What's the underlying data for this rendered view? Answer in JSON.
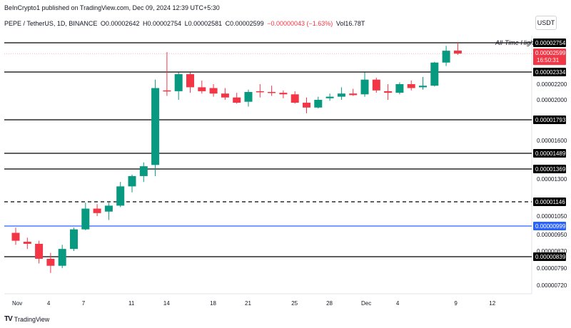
{
  "header": {
    "published": "BeInCrypto1 published on TradingView.com, Dec 09, 2024 12:39 UTC+5:30",
    "symbol": "PEPE / TetherUS, 1D, BINANCE",
    "open": "O0.00002642",
    "high": "H0.00002754",
    "low": "L0.00002581",
    "close": "C0.00002599",
    "change": "−0.00000043 (−1.63%)",
    "volume": "Vol16.78T",
    "currency_button": "USDT"
  },
  "footer": {
    "brand": "TradingView"
  },
  "colors": {
    "up": "#089981",
    "down": "#f23645",
    "level": "#000000",
    "blue_level": "#2962ff",
    "label_bg": "#000000"
  },
  "chart_data": {
    "type": "candlestick",
    "x_ticks": [
      "Nov",
      "4",
      "7",
      "11",
      "14",
      "18",
      "21",
      "25",
      "28",
      "Dec",
      "4",
      "9",
      "12"
    ],
    "y_ticks": [
      "0.00002200",
      "0.00002000",
      "0.00001600",
      "0.00001300",
      "0.00001050",
      "0.00000950",
      "0.00000870",
      "0.00000790",
      "0.00000720"
    ],
    "candles": [
      {
        "o": 9.6e-06,
        "h": 9.9e-06,
        "l": 9e-06,
        "c": 9.2e-06
      },
      {
        "o": 9.15e-06,
        "h": 9.35e-06,
        "l": 8.8e-06,
        "c": 9.05e-06
      },
      {
        "o": 9.05e-06,
        "h": 9.2e-06,
        "l": 8.1e-06,
        "c": 8.3e-06
      },
      {
        "o": 8.3e-06,
        "h": 8.6e-06,
        "l": 7.7e-06,
        "c": 8e-06
      },
      {
        "o": 8e-06,
        "h": 9e-06,
        "l": 7.9e-06,
        "c": 8.8e-06
      },
      {
        "o": 8.8e-06,
        "h": 9.9e-06,
        "l": 8.7e-06,
        "c": 9.8e-06
      },
      {
        "o": 9.8e-06,
        "h": 1.14e-05,
        "l": 9.75e-06,
        "c": 1.1e-05
      },
      {
        "o": 1.1e-05,
        "h": 1.13e-05,
        "l": 1.05e-05,
        "c": 1.07e-05
      },
      {
        "o": 1.08e-05,
        "h": 1.14e-05,
        "l": 1.03e-05,
        "c": 1.12e-05
      },
      {
        "o": 1.12e-05,
        "h": 1.28e-05,
        "l": 1.11e-05,
        "c": 1.25e-05
      },
      {
        "o": 1.25e-05,
        "h": 1.33e-05,
        "l": 1.21e-05,
        "c": 1.32e-05
      },
      {
        "o": 1.32e-05,
        "h": 1.42e-05,
        "l": 1.28e-05,
        "c": 1.39e-05
      },
      {
        "o": 1.4e-05,
        "h": 2.25e-05,
        "l": 1.32e-05,
        "c": 2.15e-05
      },
      {
        "o": 2.12e-05,
        "h": 2.62e-05,
        "l": 2.05e-05,
        "c": 2.11e-05
      },
      {
        "o": 2.11e-05,
        "h": 2.33e-05,
        "l": 2e-05,
        "c": 2.31e-05
      },
      {
        "o": 2.31e-05,
        "h": 2.33e-05,
        "l": 2.09e-05,
        "c": 2.16e-05
      },
      {
        "o": 2.16e-05,
        "h": 2.24e-05,
        "l": 2.08e-05,
        "c": 2.11e-05
      },
      {
        "o": 2.15e-05,
        "h": 2.2e-05,
        "l": 2.04e-05,
        "c": 2.08e-05
      },
      {
        "o": 2.08e-05,
        "h": 2.15e-05,
        "l": 2e-05,
        "c": 2.03e-05
      },
      {
        "o": 2.03e-05,
        "h": 2.09e-05,
        "l": 1.96e-05,
        "c": 1.97e-05
      },
      {
        "o": 1.98e-05,
        "h": 2.13e-05,
        "l": 1.93e-05,
        "c": 2.1e-05
      },
      {
        "o": 2.11e-05,
        "h": 2.2e-05,
        "l": 2.03e-05,
        "c": 2.1e-05
      },
      {
        "o": 2.1e-05,
        "h": 2.18e-05,
        "l": 2.05e-05,
        "c": 2.09e-05
      },
      {
        "o": 2.09e-05,
        "h": 2.12e-05,
        "l": 2.02e-05,
        "c": 2.07e-05
      },
      {
        "o": 2.07e-05,
        "h": 2.11e-05,
        "l": 1.96e-05,
        "c": 1.97e-05
      },
      {
        "o": 1.97e-05,
        "h": 2.03e-05,
        "l": 1.86e-05,
        "c": 1.92e-05
      },
      {
        "o": 1.92e-05,
        "h": 2.04e-05,
        "l": 1.91e-05,
        "c": 2e-05
      },
      {
        "o": 2.02e-05,
        "h": 2.08e-05,
        "l": 1.99e-05,
        "c": 2.04e-05
      },
      {
        "o": 2.04e-05,
        "h": 2.16e-05,
        "l": 2e-05,
        "c": 2.08e-05
      },
      {
        "o": 2.08e-05,
        "h": 2.14e-05,
        "l": 2.05e-05,
        "c": 2.06e-05
      },
      {
        "o": 2.07e-05,
        "h": 2.33e-05,
        "l": 2.04e-05,
        "c": 2.25e-05
      },
      {
        "o": 2.25e-05,
        "h": 2.27e-05,
        "l": 2.09e-05,
        "c": 2.12e-05
      },
      {
        "o": 2.11e-05,
        "h": 2.2e-05,
        "l": 2e-05,
        "c": 2.09e-05
      },
      {
        "o": 2.09e-05,
        "h": 2.22e-05,
        "l": 2.07e-05,
        "c": 2.2e-05
      },
      {
        "o": 2.2e-05,
        "h": 2.24e-05,
        "l": 2.12e-05,
        "c": 2.15e-05
      },
      {
        "o": 2.16e-05,
        "h": 2.28e-05,
        "l": 2.13e-05,
        "c": 2.18e-05
      },
      {
        "o": 2.18e-05,
        "h": 2.48e-05,
        "l": 2.17e-05,
        "c": 2.47e-05
      },
      {
        "o": 2.47e-05,
        "h": 2.71e-05,
        "l": 2.42e-05,
        "c": 2.64e-05
      },
      {
        "o": 2.642e-05,
        "h": 2.754e-05,
        "l": 2.581e-05,
        "c": 2.599e-05
      }
    ],
    "levels": [
      {
        "value": 2.754e-05,
        "label": "0.00002754",
        "style": "solid",
        "color": "#000000",
        "annotation": "All-Time High"
      },
      {
        "value": 2.334e-05,
        "label": "0.00002334",
        "style": "solid",
        "color": "#000000"
      },
      {
        "value": 1.793e-05,
        "label": "0.00001793",
        "style": "solid",
        "color": "#000000"
      },
      {
        "value": 1.489e-05,
        "label": "0.00001489",
        "style": "solid",
        "color": "#000000"
      },
      {
        "value": 1.369e-05,
        "label": "0.00001369",
        "style": "solid",
        "color": "#000000"
      },
      {
        "value": 1.146e-05,
        "label": "0.00001146",
        "style": "dashed",
        "color": "#000000"
      },
      {
        "value": 9.99e-06,
        "label": "0.00000999",
        "style": "solid",
        "color": "#2962ff"
      },
      {
        "value": 8.39e-06,
        "label": "0.00000839",
        "style": "solid",
        "color": "#000000"
      }
    ],
    "current_price": {
      "value": 2.599e-05,
      "label": "0.00002599",
      "countdown": "16:50:31"
    }
  }
}
